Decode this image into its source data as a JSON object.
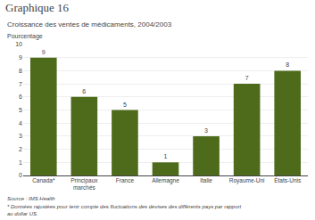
{
  "chart_data": {
    "type": "bar",
    "title": "Graphique 16",
    "subtitle": "Croissance des ventes de médicaments, 2004/2003",
    "ylabel": "Pourcentage",
    "categories": [
      "Canada*",
      "Principaux marchés",
      "France",
      "Allemagne",
      "Italie",
      "Royaume-Uni",
      "États-Unis"
    ],
    "values": [
      9,
      6,
      5,
      1,
      3,
      7,
      8
    ],
    "color": "#4d6b1a",
    "ylim": [
      0,
      10
    ],
    "yticks": [
      0,
      1,
      2,
      3,
      4,
      5,
      6,
      7,
      8,
      9,
      10
    ],
    "grid": true,
    "data_labels": true,
    "annotations": [
      "Source : IMS Health",
      "* Données rajustées pour tenir compte des fluctuations des devises des différents pays par rapport",
      "au dollar US."
    ]
  }
}
